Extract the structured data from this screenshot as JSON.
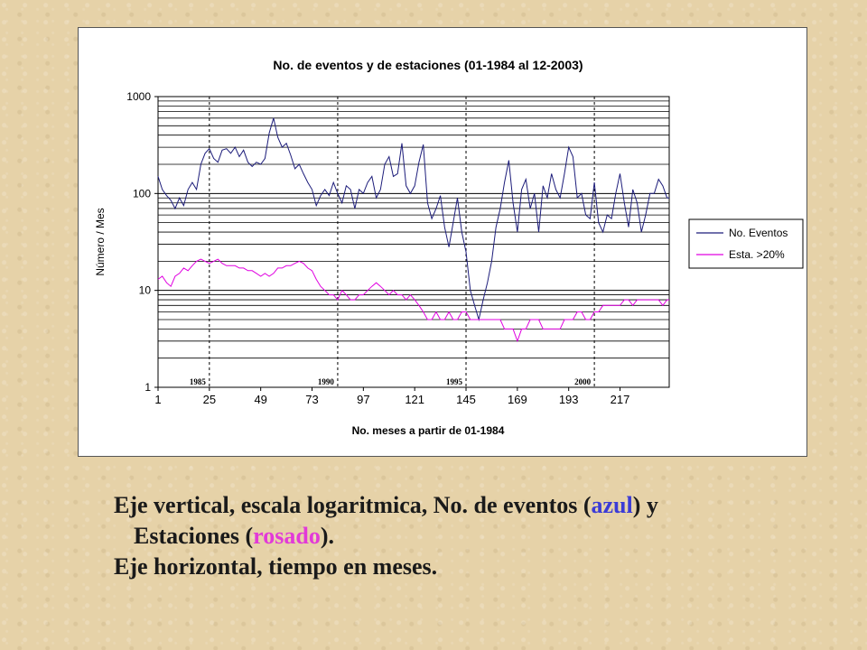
{
  "chart_data": {
    "type": "line",
    "title": "No. de eventos y de estaciones (01-1984 al 12-2003)",
    "xlabel": "No. meses a partir de 01-1984",
    "ylabel": "Número / Mes",
    "yscale": "log",
    "ylim": [
      1,
      1000
    ],
    "xlim": [
      1,
      240
    ],
    "x_ticks": [
      1,
      25,
      49,
      73,
      97,
      121,
      145,
      169,
      193,
      217
    ],
    "y_ticks": [
      1,
      10,
      100,
      1000
    ],
    "year_markers": [
      {
        "label": "1985",
        "x": 25
      },
      {
        "label": "1990",
        "x": 85
      },
      {
        "label": "1995",
        "x": 145
      },
      {
        "label": "2000",
        "x": 205
      }
    ],
    "grid": "horizontal minor log lines, dashed vertical year lines",
    "legend_position": "right",
    "series": [
      {
        "name": "No. Eventos",
        "color": "#1c1c7a",
        "points": [
          [
            1,
            150
          ],
          [
            3,
            110
          ],
          [
            5,
            95
          ],
          [
            7,
            85
          ],
          [
            9,
            70
          ],
          [
            11,
            90
          ],
          [
            13,
            75
          ],
          [
            15,
            110
          ],
          [
            17,
            130
          ],
          [
            19,
            110
          ],
          [
            21,
            200
          ],
          [
            23,
            260
          ],
          [
            25,
            290
          ],
          [
            27,
            230
          ],
          [
            29,
            210
          ],
          [
            31,
            280
          ],
          [
            33,
            290
          ],
          [
            35,
            260
          ],
          [
            37,
            300
          ],
          [
            39,
            240
          ],
          [
            41,
            280
          ],
          [
            43,
            210
          ],
          [
            45,
            190
          ],
          [
            47,
            210
          ],
          [
            49,
            200
          ],
          [
            51,
            230
          ],
          [
            53,
            420
          ],
          [
            55,
            600
          ],
          [
            57,
            380
          ],
          [
            59,
            300
          ],
          [
            61,
            330
          ],
          [
            63,
            250
          ],
          [
            65,
            180
          ],
          [
            67,
            200
          ],
          [
            69,
            160
          ],
          [
            71,
            130
          ],
          [
            73,
            110
          ],
          [
            75,
            75
          ],
          [
            77,
            95
          ],
          [
            79,
            110
          ],
          [
            81,
            95
          ],
          [
            83,
            130
          ],
          [
            85,
            100
          ],
          [
            87,
            80
          ],
          [
            89,
            120
          ],
          [
            91,
            110
          ],
          [
            93,
            70
          ],
          [
            95,
            110
          ],
          [
            97,
            100
          ],
          [
            99,
            130
          ],
          [
            101,
            150
          ],
          [
            103,
            90
          ],
          [
            105,
            110
          ],
          [
            107,
            200
          ],
          [
            109,
            240
          ],
          [
            111,
            150
          ],
          [
            113,
            160
          ],
          [
            115,
            330
          ],
          [
            117,
            120
          ],
          [
            119,
            100
          ],
          [
            121,
            120
          ],
          [
            123,
            210
          ],
          [
            125,
            320
          ],
          [
            127,
            80
          ],
          [
            129,
            55
          ],
          [
            131,
            70
          ],
          [
            133,
            95
          ],
          [
            135,
            45
          ],
          [
            137,
            28
          ],
          [
            139,
            50
          ],
          [
            141,
            90
          ],
          [
            143,
            40
          ],
          [
            145,
            25
          ],
          [
            147,
            10
          ],
          [
            149,
            7
          ],
          [
            151,
            5
          ],
          [
            153,
            8
          ],
          [
            155,
            12
          ],
          [
            157,
            20
          ],
          [
            159,
            45
          ],
          [
            161,
            70
          ],
          [
            163,
            130
          ],
          [
            165,
            220
          ],
          [
            167,
            80
          ],
          [
            169,
            40
          ],
          [
            171,
            110
          ],
          [
            173,
            140
          ],
          [
            175,
            70
          ],
          [
            177,
            100
          ],
          [
            179,
            40
          ],
          [
            181,
            120
          ],
          [
            183,
            90
          ],
          [
            185,
            160
          ],
          [
            187,
            110
          ],
          [
            189,
            90
          ],
          [
            191,
            160
          ],
          [
            193,
            300
          ],
          [
            195,
            240
          ],
          [
            197,
            90
          ],
          [
            199,
            100
          ],
          [
            201,
            60
          ],
          [
            203,
            55
          ],
          [
            205,
            130
          ],
          [
            207,
            50
          ],
          [
            209,
            40
          ],
          [
            211,
            60
          ],
          [
            213,
            55
          ],
          [
            215,
            100
          ],
          [
            217,
            160
          ],
          [
            219,
            80
          ],
          [
            221,
            45
          ],
          [
            223,
            110
          ],
          [
            225,
            80
          ],
          [
            227,
            40
          ],
          [
            229,
            60
          ],
          [
            231,
            100
          ],
          [
            233,
            100
          ],
          [
            235,
            140
          ],
          [
            237,
            120
          ],
          [
            239,
            90
          ],
          [
            240,
            90
          ]
        ]
      },
      {
        "name": "Esta. >20%",
        "color": "#e000e0",
        "points": [
          [
            1,
            13
          ],
          [
            3,
            14
          ],
          [
            5,
            12
          ],
          [
            7,
            11
          ],
          [
            9,
            14
          ],
          [
            11,
            15
          ],
          [
            13,
            17
          ],
          [
            15,
            16
          ],
          [
            17,
            18
          ],
          [
            19,
            20
          ],
          [
            21,
            21
          ],
          [
            23,
            20
          ],
          [
            25,
            19
          ],
          [
            27,
            20
          ],
          [
            29,
            21
          ],
          [
            31,
            19
          ],
          [
            33,
            18
          ],
          [
            35,
            18
          ],
          [
            37,
            18
          ],
          [
            39,
            17
          ],
          [
            41,
            17
          ],
          [
            43,
            16
          ],
          [
            45,
            16
          ],
          [
            47,
            15
          ],
          [
            49,
            14
          ],
          [
            51,
            15
          ],
          [
            53,
            14
          ],
          [
            55,
            15
          ],
          [
            57,
            17
          ],
          [
            59,
            17
          ],
          [
            61,
            18
          ],
          [
            63,
            18
          ],
          [
            65,
            19
          ],
          [
            67,
            20
          ],
          [
            69,
            19
          ],
          [
            71,
            17
          ],
          [
            73,
            16
          ],
          [
            75,
            13
          ],
          [
            77,
            11
          ],
          [
            79,
            10
          ],
          [
            81,
            9
          ],
          [
            83,
            9
          ],
          [
            85,
            8
          ],
          [
            87,
            10
          ],
          [
            89,
            9
          ],
          [
            91,
            8
          ],
          [
            93,
            8
          ],
          [
            95,
            9
          ],
          [
            97,
            9
          ],
          [
            99,
            10
          ],
          [
            101,
            11
          ],
          [
            103,
            12
          ],
          [
            105,
            11
          ],
          [
            107,
            10
          ],
          [
            109,
            9
          ],
          [
            111,
            10
          ],
          [
            113,
            9
          ],
          [
            115,
            9
          ],
          [
            117,
            8
          ],
          [
            119,
            9
          ],
          [
            121,
            8
          ],
          [
            123,
            7
          ],
          [
            125,
            6
          ],
          [
            127,
            5
          ],
          [
            129,
            5
          ],
          [
            131,
            6
          ],
          [
            133,
            5
          ],
          [
            135,
            5
          ],
          [
            137,
            6
          ],
          [
            139,
            5
          ],
          [
            141,
            5
          ],
          [
            143,
            6
          ],
          [
            145,
            6
          ],
          [
            147,
            5
          ],
          [
            149,
            5
          ],
          [
            151,
            5
          ],
          [
            153,
            5
          ],
          [
            155,
            5
          ],
          [
            157,
            5
          ],
          [
            159,
            5
          ],
          [
            161,
            5
          ],
          [
            163,
            4
          ],
          [
            165,
            4
          ],
          [
            167,
            4
          ],
          [
            169,
            3
          ],
          [
            171,
            4
          ],
          [
            173,
            4
          ],
          [
            175,
            5
          ],
          [
            177,
            5
          ],
          [
            179,
            5
          ],
          [
            181,
            4
          ],
          [
            183,
            4
          ],
          [
            185,
            4
          ],
          [
            187,
            4
          ],
          [
            189,
            4
          ],
          [
            191,
            5
          ],
          [
            193,
            5
          ],
          [
            195,
            5
          ],
          [
            197,
            6
          ],
          [
            199,
            6
          ],
          [
            201,
            5
          ],
          [
            203,
            5
          ],
          [
            205,
            6
          ],
          [
            207,
            6
          ],
          [
            209,
            7
          ],
          [
            211,
            7
          ],
          [
            213,
            7
          ],
          [
            215,
            7
          ],
          [
            217,
            7
          ],
          [
            219,
            8
          ],
          [
            221,
            8
          ],
          [
            223,
            7
          ],
          [
            225,
            8
          ],
          [
            227,
            8
          ],
          [
            229,
            8
          ],
          [
            231,
            8
          ],
          [
            233,
            8
          ],
          [
            235,
            8
          ],
          [
            237,
            7
          ],
          [
            239,
            8
          ],
          [
            240,
            8
          ]
        ]
      }
    ]
  },
  "caption": {
    "line1_a": "Eje vertical, escala logaritmica, No. de eventos (",
    "line1_blue": "azul",
    "line1_b": ") y",
    "line2_a": "Estaciones (",
    "line2_pink": "rosado",
    "line2_b": ").",
    "line3": "Eje horizontal, tiempo en meses."
  }
}
